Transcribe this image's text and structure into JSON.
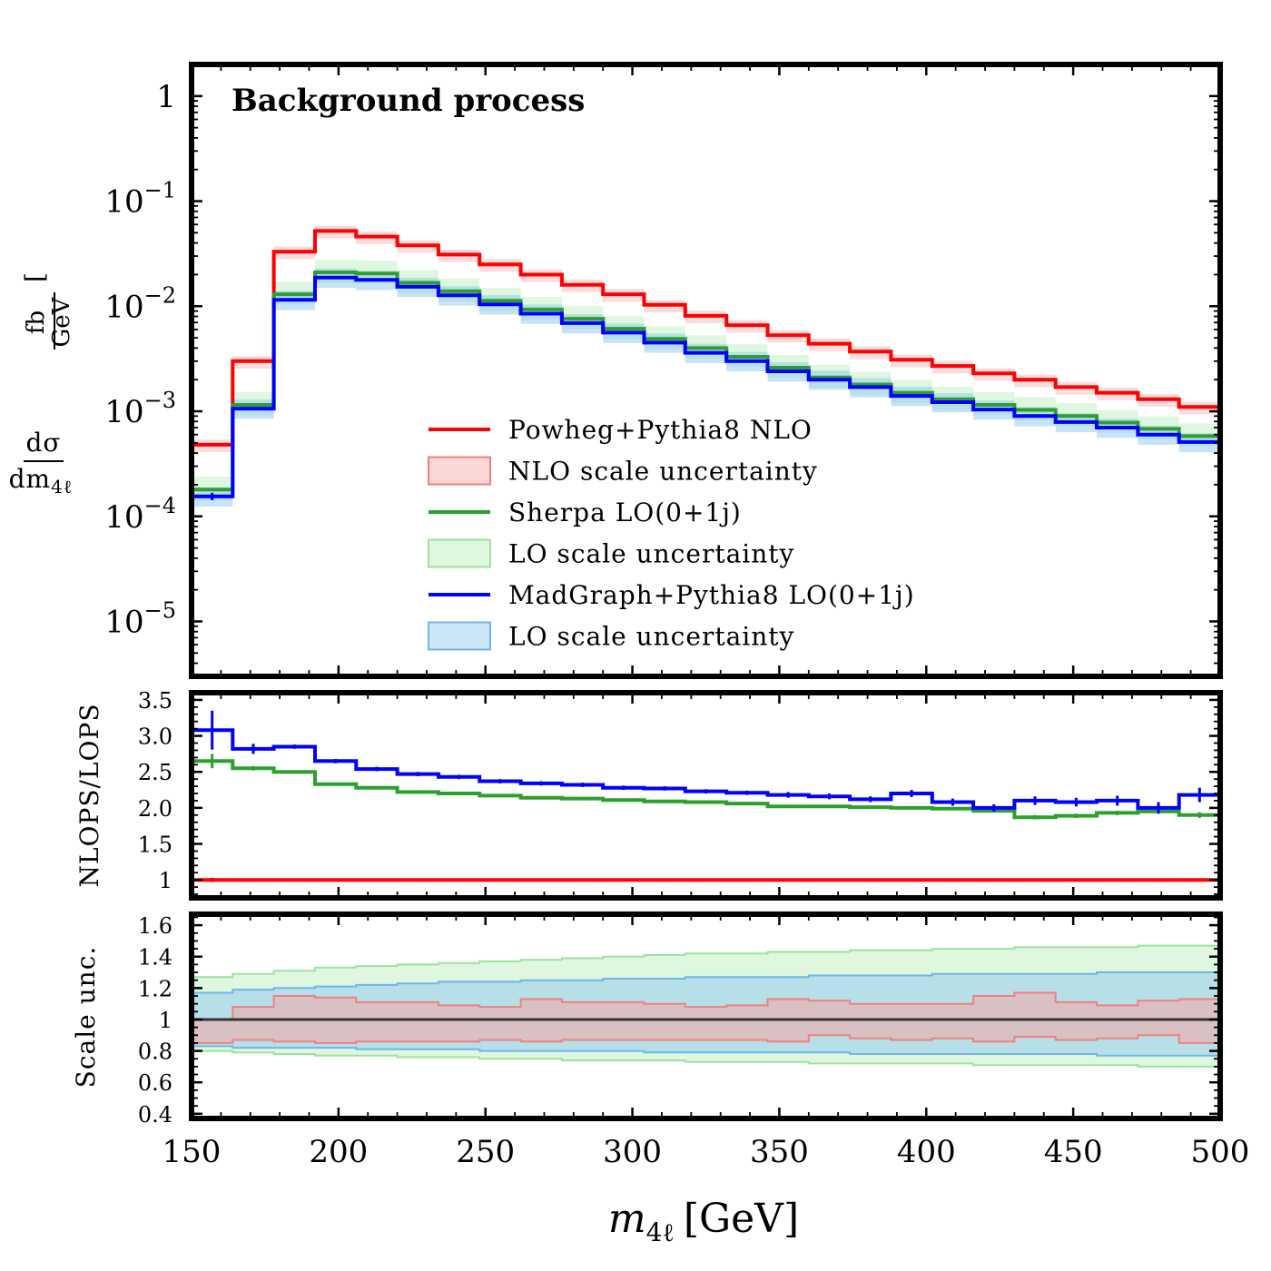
{
  "chart_data": {
    "type": "line",
    "x": {
      "bin_edges": [
        150,
        164,
        178,
        192,
        206,
        220,
        234,
        248,
        262,
        276,
        290,
        304,
        318,
        332,
        346,
        360,
        374,
        388,
        402,
        416,
        430,
        444,
        458,
        472,
        486,
        500
      ],
      "label": "m_4ℓ [GeV]",
      "label_main": "m",
      "label_sub": "4ℓ",
      "label_unit": "[GeV]",
      "lim": [
        150,
        500
      ],
      "ticks": [
        "150",
        "200",
        "250",
        "300",
        "350",
        "400",
        "450",
        "500"
      ],
      "tick_values": [
        150,
        200,
        250,
        300,
        350,
        400,
        450,
        500
      ]
    },
    "panels": [
      {
        "id": "main",
        "title": "Background process",
        "ylabel": "dσ/dm_4ℓ [fb/GeV]",
        "ylabel_num": "dσ",
        "ylabel_den": "dm",
        "ylabel_den_sub": "4ℓ",
        "ylabel_unit_num": "fb",
        "ylabel_unit_den": "GeV",
        "yscale": "log",
        "ylim": [
          3e-06,
          2
        ],
        "ytick_values": [
          1e-05,
          0.0001,
          0.001,
          0.01,
          0.1,
          1
        ],
        "ytick_labels": [
          {
            "base": "10",
            "exp": "−5"
          },
          {
            "base": "10",
            "exp": "−4"
          },
          {
            "base": "10",
            "exp": "−3"
          },
          {
            "base": "10",
            "exp": "−2"
          },
          {
            "base": "10",
            "exp": "−1"
          },
          {
            "base": "1",
            "exp": ""
          }
        ],
        "series": [
          {
            "name": "Powheg+Pythia8 NLO",
            "color": "#ff0000",
            "values": [
              0.00048,
              0.003,
              0.033,
              0.052,
              0.046,
              0.038,
              0.031,
              0.025,
              0.02,
              0.016,
              0.013,
              0.0103,
              0.0081,
              0.0066,
              0.0053,
              0.0044,
              0.0037,
              0.0031,
              0.0027,
              0.0023,
              0.002,
              0.0017,
              0.0015,
              0.0013,
              0.0011
            ]
          },
          {
            "name": "Sherpa LO(0+1j)",
            "color": "#2ca02c",
            "values": [
              0.00018,
              0.00115,
              0.013,
              0.021,
              0.0205,
              0.0167,
              0.0139,
              0.0113,
              0.0093,
              0.0076,
              0.0061,
              0.0049,
              0.004,
              0.0033,
              0.0026,
              0.0021,
              0.0018,
              0.0015,
              0.0013,
              0.00115,
              0.00103,
              0.0009,
              0.00078,
              0.00068,
              0.00058
            ]
          },
          {
            "name": "MadGraph+Pythia8 LO(0+1j)",
            "color": "#0000ff",
            "values": [
              0.000155,
              0.00106,
              0.0115,
              0.0187,
              0.0178,
              0.0153,
              0.0127,
              0.0104,
              0.0085,
              0.0069,
              0.0056,
              0.0045,
              0.0036,
              0.003,
              0.0024,
              0.002,
              0.0017,
              0.0014,
              0.00122,
              0.00104,
              0.0009,
              0.00079,
              0.0007,
              0.0006,
              0.00051
            ]
          }
        ],
        "bands": [
          {
            "name": "NLO scale uncertainty",
            "color": "#f4a6a6",
            "opacity": 0.4,
            "follows": "Powheg+Pythia8 NLO",
            "rel_lo": 0.85,
            "rel_hi": 1.12
          },
          {
            "name": "LO scale uncertainty",
            "color": "#b7ecb7",
            "opacity": 0.45,
            "follows": "Sherpa LO(0+1j)",
            "rel_lo": 0.8,
            "rel_hi": 1.32
          },
          {
            "name": "LO scale uncertainty",
            "color": "#8ec8f0",
            "opacity": 0.5,
            "follows": "MadGraph+Pythia8 LO(0+1j)",
            "rel_lo": 0.8,
            "rel_hi": 1.22
          }
        ],
        "legend": {
          "position": "lower-center",
          "entries": [
            {
              "label": "Powheg+Pythia8 NLO",
              "kind": "line",
              "color": "#ff0000"
            },
            {
              "label": "NLO scale uncertainty",
              "kind": "patch",
              "color": "#f4a6a6",
              "edge": "#f08080"
            },
            {
              "label": "Sherpa LO(0+1j)",
              "kind": "line",
              "color": "#2ca02c"
            },
            {
              "label": "LO scale uncertainty",
              "kind": "patch",
              "color": "#b7ecb7",
              "edge": "#9ee29e"
            },
            {
              "label": "MadGraph+Pythia8 LO(0+1j)",
              "kind": "line",
              "color": "#0000ff"
            },
            {
              "label": "LO scale uncertainty",
              "kind": "patch",
              "color": "#8ec8f0",
              "edge": "#6fb6ea"
            }
          ]
        }
      },
      {
        "id": "ratio",
        "ylabel": "NLOPS/LOPS",
        "ylim": [
          0.75,
          3.6
        ],
        "ytick_values": [
          1,
          1.5,
          2.0,
          2.5,
          3.0,
          3.5
        ],
        "ytick_labels": [
          "1",
          "1.5",
          "2.0",
          "2.5",
          "3.0",
          "3.5"
        ],
        "series": [
          {
            "name": "Powheg+Pythia8 NLO",
            "color": "#ff0000",
            "values": [
              1,
              1,
              1,
              1,
              1,
              1,
              1,
              1,
              1,
              1,
              1,
              1,
              1,
              1,
              1,
              1,
              1,
              1,
              1,
              1,
              1,
              1,
              1,
              1,
              1
            ],
            "errors": [
              0.03,
              0.01,
              0.01,
              0.01,
              0.01,
              0.01,
              0.01,
              0.01,
              0.01,
              0.01,
              0.01,
              0.01,
              0.01,
              0.01,
              0.01,
              0.01,
              0.01,
              0.01,
              0.01,
              0.01,
              0.01,
              0.01,
              0.01,
              0.01,
              0.01
            ]
          },
          {
            "name": "Sherpa LO(0+1j)",
            "color": "#2ca02c",
            "values": [
              2.65,
              2.55,
              2.5,
              2.33,
              2.28,
              2.22,
              2.2,
              2.17,
              2.14,
              2.13,
              2.11,
              2.09,
              2.08,
              2.06,
              2.02,
              2.02,
              2.01,
              2.0,
              1.99,
              1.96,
              1.87,
              1.89,
              1.93,
              1.95,
              1.9
            ],
            "errors": [
              0.1,
              0.03,
              0.02,
              0.02,
              0.02,
              0.02,
              0.02,
              0.02,
              0.02,
              0.02,
              0.02,
              0.02,
              0.02,
              0.02,
              0.02,
              0.02,
              0.02,
              0.02,
              0.02,
              0.02,
              0.03,
              0.03,
              0.03,
              0.03,
              0.04
            ]
          },
          {
            "name": "MadGraph+Pythia8 LO(0+1j)",
            "color": "#0000ff",
            "values": [
              3.08,
              2.82,
              2.85,
              2.65,
              2.54,
              2.47,
              2.43,
              2.37,
              2.34,
              2.32,
              2.28,
              2.27,
              2.23,
              2.21,
              2.18,
              2.16,
              2.12,
              2.2,
              2.08,
              2.0,
              2.1,
              2.08,
              2.1,
              2.0,
              2.18
            ],
            "errors": [
              0.27,
              0.07,
              0.03,
              0.03,
              0.03,
              0.03,
              0.03,
              0.03,
              0.03,
              0.03,
              0.03,
              0.03,
              0.03,
              0.03,
              0.04,
              0.04,
              0.04,
              0.05,
              0.05,
              0.05,
              0.06,
              0.06,
              0.07,
              0.08,
              0.1
            ]
          }
        ]
      },
      {
        "id": "scale",
        "ylabel": "Scale unc.",
        "ylim": [
          0.37,
          1.67
        ],
        "ytick_values": [
          0.4,
          0.6,
          0.8,
          1,
          1.2,
          1.4,
          1.6
        ],
        "ytick_labels": [
          "0.4",
          "0.6",
          "0.8",
          "1",
          "1.2",
          "1.4",
          "1.6"
        ],
        "reference_line": 1,
        "bands": [
          {
            "name": "LO scale uncertainty",
            "color": "#b7ecb7",
            "edge": "#9ee29e",
            "opacity": 0.45,
            "lo": [
              0.8,
              0.79,
              0.78,
              0.77,
              0.77,
              0.76,
              0.76,
              0.75,
              0.75,
              0.74,
              0.74,
              0.74,
              0.73,
              0.73,
              0.73,
              0.72,
              0.72,
              0.72,
              0.72,
              0.71,
              0.71,
              0.71,
              0.71,
              0.7,
              0.7
            ],
            "hi": [
              1.27,
              1.29,
              1.31,
              1.33,
              1.34,
              1.35,
              1.36,
              1.37,
              1.38,
              1.39,
              1.4,
              1.41,
              1.42,
              1.42,
              1.43,
              1.43,
              1.44,
              1.44,
              1.45,
              1.45,
              1.46,
              1.46,
              1.46,
              1.47,
              1.47
            ]
          },
          {
            "name": "LO scale uncertainty",
            "color": "#8ec8f0",
            "edge": "#6fb6ea",
            "opacity": 0.5,
            "lo": [
              0.83,
              0.82,
              0.82,
              0.82,
              0.81,
              0.81,
              0.81,
              0.8,
              0.8,
              0.8,
              0.8,
              0.79,
              0.79,
              0.79,
              0.79,
              0.79,
              0.78,
              0.78,
              0.78,
              0.78,
              0.78,
              0.78,
              0.77,
              0.77,
              0.77
            ],
            "hi": [
              1.17,
              1.19,
              1.2,
              1.21,
              1.22,
              1.23,
              1.24,
              1.24,
              1.25,
              1.25,
              1.26,
              1.26,
              1.27,
              1.27,
              1.27,
              1.28,
              1.28,
              1.28,
              1.29,
              1.29,
              1.29,
              1.29,
              1.3,
              1.3,
              1.3
            ]
          },
          {
            "name": "NLO scale uncertainty",
            "color": "#f4a6a6",
            "edge": "#f08080",
            "opacity": 0.55,
            "lo": [
              0.85,
              0.87,
              0.86,
              0.85,
              0.86,
              0.86,
              0.86,
              0.87,
              0.86,
              0.87,
              0.87,
              0.87,
              0.87,
              0.87,
              0.86,
              0.9,
              0.88,
              0.87,
              0.88,
              0.86,
              0.89,
              0.87,
              0.88,
              0.9,
              0.85
            ],
            "hi": [
              1.0,
              1.08,
              1.15,
              1.14,
              1.11,
              1.11,
              1.09,
              1.08,
              1.13,
              1.11,
              1.11,
              1.1,
              1.08,
              1.09,
              1.13,
              1.12,
              1.1,
              1.1,
              1.1,
              1.15,
              1.17,
              1.11,
              1.09,
              1.12,
              1.13
            ]
          }
        ]
      }
    ]
  }
}
